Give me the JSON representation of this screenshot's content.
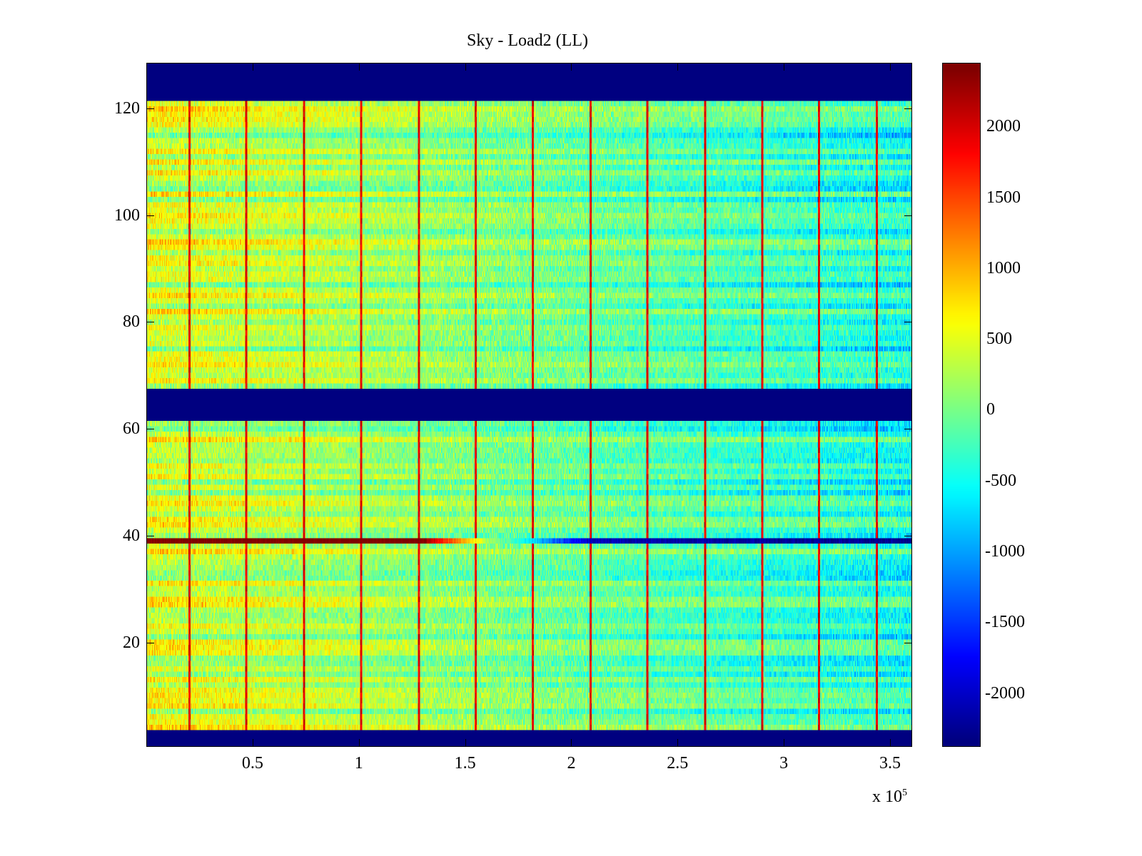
{
  "chart_data": {
    "type": "heatmap",
    "title": "Sky - Load2 (LL)",
    "xlabel": "",
    "ylabel": "",
    "x_multiplier_label": "x 10",
    "x_multiplier_exp": "5",
    "xlim": [
      0,
      360400
    ],
    "ylim": [
      0.5,
      128.5
    ],
    "xticks": [
      50000,
      100000,
      150000,
      200000,
      250000,
      300000,
      350000
    ],
    "xtick_labels": [
      "0.5",
      "1",
      "1.5",
      "2",
      "2.5",
      "3",
      "3.5"
    ],
    "yticks": [
      20,
      40,
      60,
      80,
      100,
      120
    ],
    "ytick_labels": [
      "20",
      "40",
      "60",
      "80",
      "100",
      "120"
    ],
    "colormap": "jet",
    "clim": [
      -2380,
      2450
    ],
    "colorbar_ticks": [
      2000,
      1500,
      1000,
      500,
      0,
      -500,
      -1000,
      -1500,
      -2000
    ],
    "colorbar_tick_labels": [
      "2000",
      "1500",
      "1000",
      "500",
      "0",
      "-500",
      "-1000",
      "-1500",
      "-2000"
    ],
    "masked_row_ranges": [
      [
        1,
        3
      ],
      [
        62,
        67
      ],
      [
        122,
        128
      ]
    ],
    "masked_value": -2380,
    "stripe_x_positions": [
      20000,
      47000,
      74000,
      101000,
      128000,
      155000,
      182000,
      209000,
      236000,
      263000,
      290000,
      317000,
      344000
    ],
    "stripe_value": 2200,
    "baseline_trend": {
      "x": [
        0,
        180000,
        360000
      ],
      "value": [
        450,
        0,
        -450
      ]
    },
    "anomalous_row": {
      "row": 39,
      "x": [
        0,
        129000,
        160000,
        210000,
        360000
      ],
      "value": [
        2450,
        2450,
        300,
        -2100,
        -2300
      ]
    },
    "noise_amplitude": 350
  }
}
